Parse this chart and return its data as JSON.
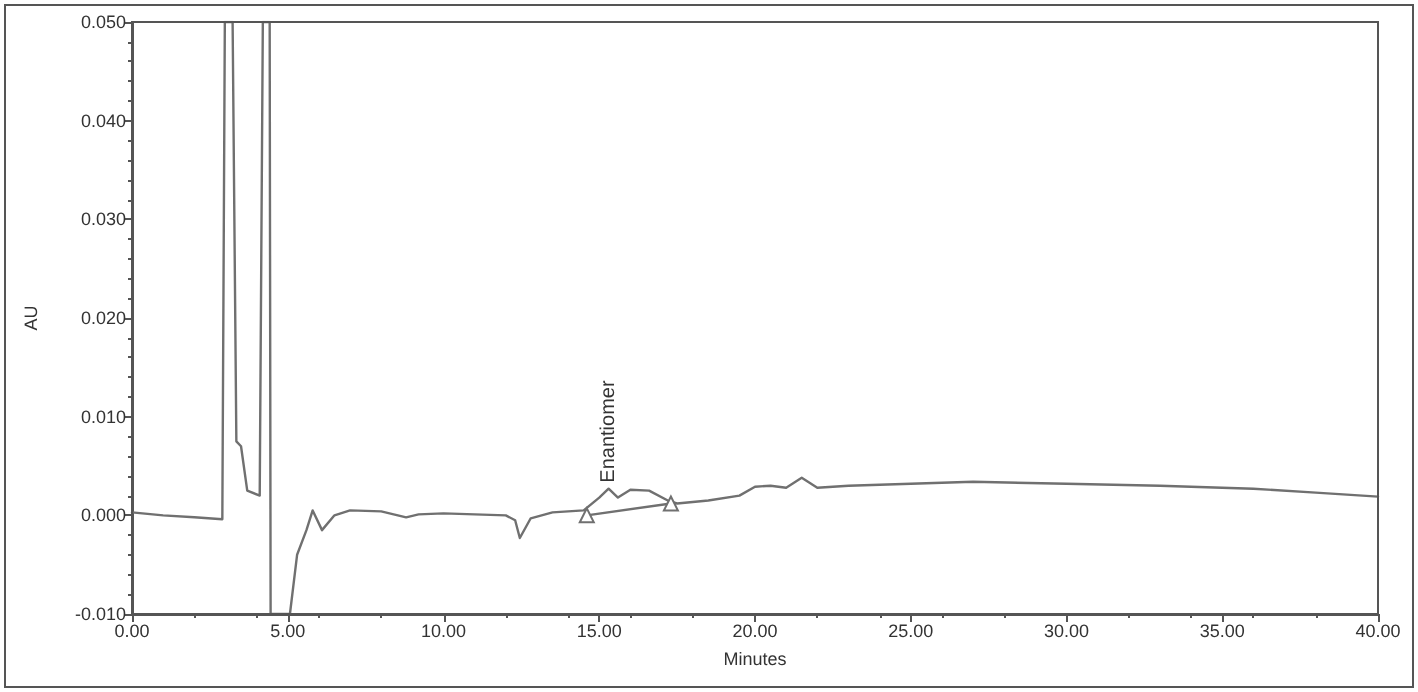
{
  "chart_data": {
    "type": "line",
    "xlabel": "Minutes",
    "ylabel": "AU",
    "xlim": [
      0,
      40
    ],
    "ylim": [
      -0.01,
      0.05
    ],
    "xticks": [
      {
        "value": 0,
        "label": "0.00"
      },
      {
        "value": 5,
        "label": "5.00"
      },
      {
        "value": 10,
        "label": "10.00"
      },
      {
        "value": 15,
        "label": "15.00"
      },
      {
        "value": 20,
        "label": "20.00"
      },
      {
        "value": 25,
        "label": "25.00"
      },
      {
        "value": 30,
        "label": "30.00"
      },
      {
        "value": 35,
        "label": "35.00"
      },
      {
        "value": 40,
        "label": "40.00"
      }
    ],
    "yticks": [
      {
        "value": -0.01,
        "label": "-0.010"
      },
      {
        "value": 0,
        "label": "0.000"
      },
      {
        "value": 0.01,
        "label": "0.010"
      },
      {
        "value": 0.02,
        "label": "0.020"
      },
      {
        "value": 0.03,
        "label": "0.030"
      },
      {
        "value": 0.04,
        "label": "0.040"
      },
      {
        "value": 0.05,
        "label": "0.050"
      }
    ],
    "grid": false,
    "line_style": "solid",
    "annotations": [
      {
        "text": "Enantiomer",
        "x": 15.3,
        "y": 0.0027
      }
    ],
    "series": [
      {
        "color": "#707070",
        "marker": "none",
        "x": [
          0,
          1,
          2,
          2.9,
          2.98,
          3.23,
          3.35,
          3.5,
          3.7,
          4.1,
          4.2,
          4.42,
          4.45,
          5.07,
          5.3,
          5.6,
          5.8,
          6.1,
          6.5,
          7,
          8,
          8.8,
          9.2,
          10,
          11,
          12,
          12.3,
          12.45,
          12.8,
          13.5,
          14.5,
          15,
          15.3,
          15.6,
          16,
          16.6,
          17.2,
          17.5,
          18.5,
          19.5,
          20,
          20.5,
          21,
          21.5,
          22,
          23,
          25,
          27,
          30,
          33,
          36,
          38,
          40
        ],
        "values": [
          0.0003,
          0.0,
          -0.0002,
          -0.0004,
          0.05,
          0.05,
          0.0075,
          0.007,
          0.0025,
          0.002,
          0.05,
          0.05,
          -0.01,
          -0.01,
          -0.004,
          -0.0015,
          0.0005,
          -0.0015,
          0.0,
          0.0005,
          0.0004,
          -0.0002,
          0.0001,
          0.0002,
          0.0001,
          0.0,
          -0.0005,
          -0.0023,
          -0.0003,
          0.0003,
          0.0005,
          0.0018,
          0.0027,
          0.0018,
          0.0026,
          0.0025,
          0.0015,
          0.0012,
          0.0015,
          0.002,
          0.0029,
          0.003,
          0.0028,
          0.0038,
          0.0028,
          0.003,
          0.0032,
          0.0034,
          0.0032,
          0.003,
          0.0027,
          0.0023,
          0.0019
        ]
      },
      {
        "color": "#707070",
        "marker": "triangle",
        "x": [
          14.6,
          17.3
        ],
        "values": [
          0.0,
          0.0012
        ]
      }
    ]
  }
}
